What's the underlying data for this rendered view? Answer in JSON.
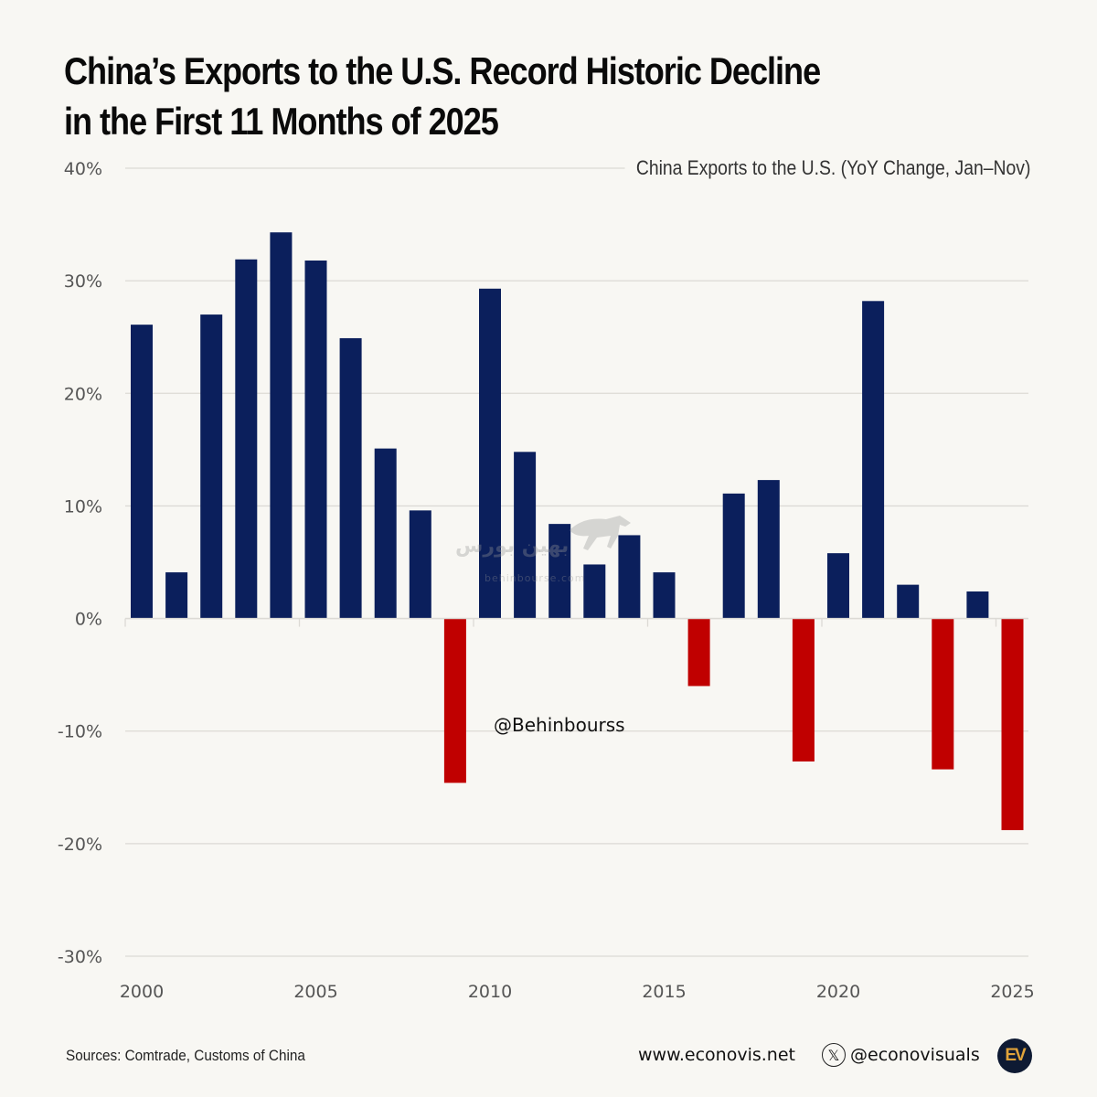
{
  "header": {
    "title_line1": "China’s Exports to the U.S. Record Historic Decline",
    "title_line2": "in the First 11 Months of 2025",
    "subtitle": "China Exports to the U.S. (YoY Change, Jan–Nov)"
  },
  "watermark": {
    "handle": "@Behinbourss",
    "logo_text": "بهین بورس",
    "logo_sub": "behinbourse.com"
  },
  "footer": {
    "sources": "Sources: Comtrade, Customs of China",
    "website": "www.econovis.net",
    "x_icon": "𝕏",
    "x_handle": "@econovisuals",
    "logo": "EV"
  },
  "colors": {
    "positive": "#0b1f5c",
    "negative": "#c00000",
    "grid": "#dcdad5",
    "background": "#f8f7f3"
  },
  "chart_data": {
    "type": "bar",
    "title": "China’s Exports to the U.S. Record Historic Decline in the First 11 Months of 2025",
    "subtitle": "China Exports to the U.S. (YoY Change, Jan–Nov)",
    "xlabel": "",
    "ylabel": "",
    "ylim": [
      -30,
      40
    ],
    "yticks": [
      40,
      30,
      20,
      10,
      0,
      -10,
      -20,
      -30
    ],
    "ytick_labels": [
      "40%",
      "30%",
      "20%",
      "10%",
      "0%",
      "-10%",
      "-20%",
      "-30%"
    ],
    "xtick_labels": [
      "2000",
      "2005",
      "2010",
      "2015",
      "2020",
      "2025"
    ],
    "grid": true,
    "legend": "none",
    "categories": [
      "2000",
      "2001",
      "2002",
      "2003",
      "2004",
      "2005",
      "2006",
      "2007",
      "2008",
      "2009",
      "2010",
      "2011",
      "2012",
      "2013",
      "2014",
      "2015",
      "2016",
      "2017",
      "2018",
      "2019",
      "2020",
      "2021",
      "2022",
      "2023",
      "2024",
      "2025"
    ],
    "values": [
      26.1,
      4.1,
      27.0,
      31.9,
      34.3,
      31.8,
      24.9,
      15.1,
      9.6,
      -14.6,
      29.3,
      14.8,
      8.4,
      4.8,
      7.4,
      4.1,
      -6.0,
      11.1,
      12.3,
      -12.7,
      5.8,
      28.2,
      3.0,
      -13.4,
      2.4,
      -18.8
    ],
    "units": "%"
  }
}
